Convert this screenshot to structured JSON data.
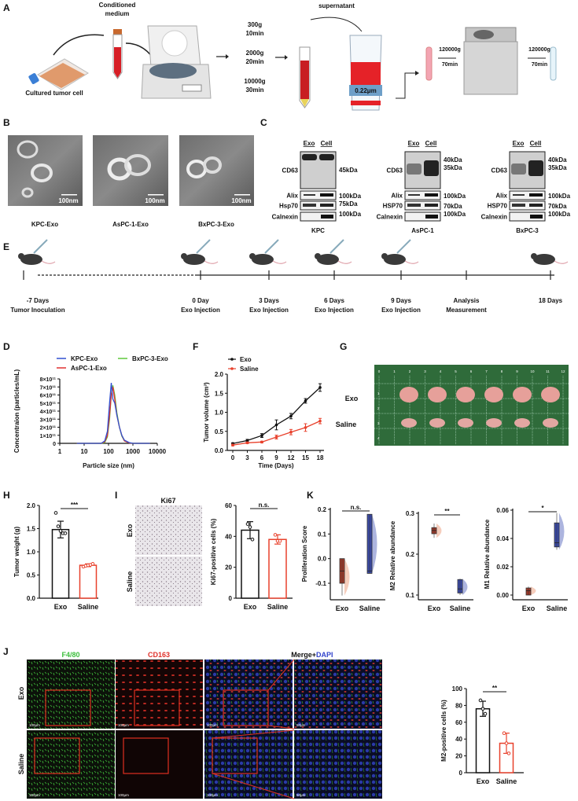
{
  "panel_labels": {
    "A": "A",
    "B": "B",
    "C": "C",
    "D": "D",
    "E": "E",
    "F": "F",
    "G": "G",
    "H": "H",
    "I": "I",
    "J": "J",
    "K": "K"
  },
  "panel_a": {
    "conditioned_1": "Conditioned",
    "conditioned_2": "medium",
    "cultured": "Cultured tumor cell",
    "steps": [
      [
        "300g",
        "10min"
      ],
      [
        "2000g",
        "20min"
      ],
      [
        "10000g",
        "30min"
      ]
    ],
    "supernatant": "supernatant",
    "filter": "0.22μm",
    "ultra": [
      [
        "120000g",
        "70min"
      ],
      [
        "120000g",
        "70min"
      ]
    ]
  },
  "panel_b": {
    "images": [
      {
        "label": "KPC-Exo",
        "scale": "100nm"
      },
      {
        "label": "AsPC-1-Exo",
        "scale": "100nm"
      },
      {
        "label": "BxPC-3-Exo",
        "scale": "100nm"
      }
    ]
  },
  "panel_c": {
    "blots": [
      {
        "cell_line": "KPC",
        "lanes": [
          "Exo",
          "Cell"
        ],
        "proteins": [
          "CD63",
          "Alix",
          "Hsp70",
          "Calnexin"
        ],
        "cd63_markers": [
          "45kDa"
        ],
        "alix_marker": "100kDa",
        "hsp_marker": "75kDa",
        "calnexin_marker": "100kDa"
      },
      {
        "cell_line": "AsPC-1",
        "lanes": [
          "Exo",
          "Cell"
        ],
        "proteins": [
          "CD63",
          "Alix",
          "HSP70",
          "Calnexin"
        ],
        "cd63_markers": [
          "40kDa",
          "35kDa"
        ],
        "alix_marker": "100kDa",
        "hsp_marker": "70kDa",
        "calnexin_marker": "100kDa"
      },
      {
        "cell_line": "BxPC-3",
        "lanes": [
          "Exo",
          "Cell"
        ],
        "proteins": [
          "CD63",
          "Alix",
          "HSP70",
          "Calnexin"
        ],
        "cd63_markers": [
          "40kDa",
          "35kDa"
        ],
        "alix_marker": "100kDa",
        "hsp_marker": "70kDa",
        "calnexin_marker": "100kDa"
      }
    ]
  },
  "panel_e": {
    "timepoints": [
      {
        "day": "-7 Days",
        "event": "Tumor Inoculation"
      },
      {
        "day": "0 Day",
        "event": "Exo Injection"
      },
      {
        "day": "3 Days",
        "event": "Exo Injection"
      },
      {
        "day": "6 Days",
        "event": "Exo Injection"
      },
      {
        "day": "9 Days",
        "event": "Exo Injection"
      },
      {
        "day": "Analysis",
        "event": "Measurement"
      },
      {
        "day": "18 Days",
        "event": ""
      }
    ]
  },
  "panel_g": {
    "rows": [
      "Exo",
      "Saline"
    ],
    "ruler_top": [
      "0",
      "1",
      "2",
      "3",
      "4",
      "5",
      "6",
      "7",
      "8",
      "9",
      "10",
      "11",
      "12"
    ],
    "ruler_side": [
      "1",
      "2",
      "3",
      "4"
    ]
  },
  "panel_i": {
    "title": "Ki67",
    "rows": [
      "Exo",
      "Saline"
    ]
  },
  "panel_j": {
    "channels": {
      "f480": "F4/80",
      "cd163": "CD163",
      "merge": "Merge+",
      "dapi": "DAPI"
    },
    "rows": [
      "Exo",
      "Saline"
    ],
    "scale": "100μm",
    "zoom_scale": "50μm",
    "colors": {
      "f480": "#3cbf3c",
      "cd163": "#e0302a",
      "dapi": "#3344cc"
    }
  },
  "chart_data": [
    {
      "id": "D",
      "type": "line",
      "xscale": "log",
      "xlabel": "Particle size (nm)",
      "ylabel": "Concentraion (particles/mL)",
      "xlim": [
        1,
        10000
      ],
      "xticks": [
        "1",
        "10",
        "100",
        "1000",
        "10000"
      ],
      "ylim": [
        0,
        800000000000.0
      ],
      "yticks": [
        "0",
        "1×10¹¹",
        "2×10¹¹",
        "3×10¹¹",
        "4×10¹¹",
        "5×10¹¹",
        "6×10¹¹",
        "7×10¹¹",
        "8×10¹¹"
      ],
      "legend": "top",
      "series": [
        {
          "name": "KPC-Exo",
          "color": "#3050d0",
          "x": [
            5,
            50,
            70,
            90,
            110,
            130,
            150,
            180,
            220,
            280,
            350,
            450,
            700,
            1000,
            5000
          ],
          "y": [
            0,
            0,
            30000000000.0,
            150000000000.0,
            500000000000.0,
            750000000000.0,
            550000000000.0,
            500000000000.0,
            350000000000.0,
            200000000000.0,
            100000000000.0,
            40000000000.0,
            10000000000.0,
            0,
            0
          ]
        },
        {
          "name": "AsPC-1-Exo",
          "color": "#e03030",
          "x": [
            5,
            50,
            70,
            90,
            110,
            130,
            150,
            180,
            220,
            280,
            350,
            450,
            700,
            1000,
            5000
          ],
          "y": [
            0,
            0,
            20000000000.0,
            100000000000.0,
            350000000000.0,
            600000000000.0,
            700000000000.0,
            550000000000.0,
            350000000000.0,
            200000000000.0,
            100000000000.0,
            30000000000.0,
            5000000000.0,
            0,
            0
          ]
        },
        {
          "name": "BxPC-3-Exo",
          "color": "#5ec83c",
          "x": [
            5,
            50,
            70,
            90,
            110,
            130,
            150,
            180,
            220,
            280,
            350,
            450,
            700,
            1000,
            5000
          ],
          "y": [
            0,
            0,
            10000000000.0,
            80000000000.0,
            300000000000.0,
            600000000000.0,
            720000000000.0,
            600000000000.0,
            380000000000.0,
            200000000000.0,
            90000000000.0,
            30000000000.0,
            5000000000.0,
            0,
            0
          ]
        }
      ]
    },
    {
      "id": "F",
      "type": "line",
      "xlabel": "Time (Days)",
      "ylabel": "Tumor volume (cm³)",
      "x": [
        0,
        3,
        6,
        9,
        12,
        15,
        18
      ],
      "xlim": [
        0,
        18
      ],
      "ylim": [
        0,
        2
      ],
      "yticks": [
        "0.0",
        "0.5",
        "1.0",
        "1.5",
        "2.0"
      ],
      "legend": "top-left",
      "series": [
        {
          "name": "Exo",
          "color": "#111111",
          "values": [
            0.18,
            0.26,
            0.39,
            0.67,
            0.9,
            1.3,
            1.65
          ],
          "err": [
            0.02,
            0.03,
            0.05,
            0.13,
            0.07,
            0.06,
            0.1
          ]
        },
        {
          "name": "Saline",
          "color": "#e8412c",
          "values": [
            0.14,
            0.2,
            0.22,
            0.35,
            0.48,
            0.6,
            0.77
          ],
          "err": [
            0.02,
            0.02,
            0.02,
            0.05,
            0.07,
            0.1,
            0.07
          ]
        }
      ]
    },
    {
      "id": "H",
      "type": "bar",
      "ylabel": "Tumor weight (g)",
      "categories": [
        "Exo",
        "Saline"
      ],
      "ylim": [
        0,
        2
      ],
      "yticks": [
        "0.0",
        "0.5",
        "1.0",
        "1.5",
        "2.0"
      ],
      "significance": "***",
      "values": [
        1.48,
        0.71
      ],
      "err": [
        0.18,
        0.03
      ],
      "colors": [
        "#111111",
        "#e8412c"
      ],
      "points": [
        [
          1.84,
          1.55,
          1.45,
          1.4,
          1.4
        ],
        [
          0.68,
          0.7,
          0.71,
          0.72,
          0.74
        ]
      ]
    },
    {
      "id": "I",
      "type": "bar",
      "ylabel": "Ki67-positive cells (%)",
      "categories": [
        "Exo",
        "Saline"
      ],
      "ylim": [
        0,
        60
      ],
      "yticks": [
        "0",
        "20",
        "40",
        "60"
      ],
      "significance": "n.s.",
      "values": [
        44,
        38
      ],
      "err": [
        5.5,
        3
      ],
      "colors": [
        "#111111",
        "#e8412c"
      ],
      "points": [
        [
          48,
          46,
          38
        ],
        [
          41,
          37,
          37
        ]
      ]
    },
    {
      "id": "K1",
      "type": "box",
      "ylabel": "Proliferation Score",
      "categories": [
        "Exo",
        "Saline"
      ],
      "ylim": [
        -0.17,
        0.2
      ],
      "yticks": [
        "-0.1",
        "0.0",
        "0.1",
        "0.2"
      ],
      "ytick_values": [
        -0.1,
        0,
        0.1,
        0.2
      ],
      "significance": "n.s.",
      "boxes": [
        {
          "q1": -0.1,
          "median": -0.05,
          "q3": 0.0,
          "min": -0.15,
          "max": 0.0
        },
        {
          "q1": -0.06,
          "median": -0.05,
          "q3": 0.18,
          "min": -0.06,
          "max": 0.18
        }
      ],
      "colors": [
        "#e8906a",
        "#4a5ab8"
      ]
    },
    {
      "id": "K2",
      "type": "box",
      "ylabel": "M2 Relative abundance",
      "categories": [
        "Exo",
        "Saline"
      ],
      "ylim": [
        0.09,
        0.305
      ],
      "yticks": [
        "0.1",
        "0.2",
        "0.3"
      ],
      "ytick_values": [
        0.1,
        0.2,
        0.3
      ],
      "significance": "**",
      "boxes": [
        {
          "q1": 0.25,
          "median": 0.258,
          "q3": 0.265,
          "min": 0.24,
          "max": 0.275
        },
        {
          "q1": 0.105,
          "median": 0.115,
          "q3": 0.138,
          "min": 0.1,
          "max": 0.14
        }
      ],
      "colors": [
        "#e8906a",
        "#4a5ab8"
      ]
    },
    {
      "id": "K3",
      "type": "box",
      "ylabel": "M1 Relative abundance",
      "categories": [
        "Exo",
        "Saline"
      ],
      "ylim": [
        -0.003,
        0.062
      ],
      "yticks": [
        "0.00",
        "0.02",
        "0.04",
        "0.06"
      ],
      "ytick_values": [
        0,
        0.02,
        0.04,
        0.06
      ],
      "significance": "*",
      "boxes": [
        {
          "q1": 0.0,
          "median": 0.003,
          "q3": 0.005,
          "min": 0,
          "max": 0.006
        },
        {
          "q1": 0.034,
          "median": 0.037,
          "q3": 0.051,
          "min": 0.032,
          "max": 0.058
        }
      ],
      "colors": [
        "#e8906a",
        "#4a5ab8"
      ]
    },
    {
      "id": "J",
      "type": "bar",
      "ylabel": "M2-positive cells (%)",
      "categories": [
        "Exo",
        "Saline"
      ],
      "ylim": [
        0,
        100
      ],
      "yticks": [
        "0",
        "20",
        "40",
        "60",
        "80",
        "100"
      ],
      "significance": "**",
      "values": [
        76,
        35
      ],
      "err": [
        9,
        12
      ],
      "colors": [
        "#111111",
        "#e8412c"
      ],
      "points": [
        [
          86,
          76,
          70
        ],
        [
          47,
          35,
          23
        ]
      ]
    }
  ]
}
